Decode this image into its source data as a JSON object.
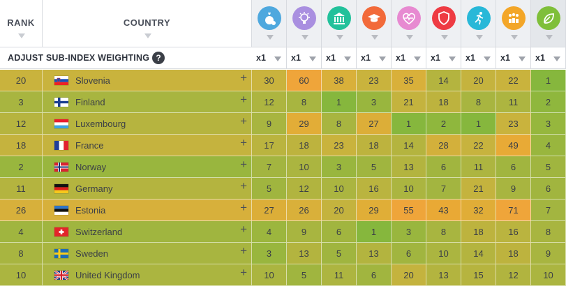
{
  "headers": {
    "rank": "RANK",
    "country": "COUNTRY",
    "categories": [
      {
        "icon": "money-bag-icon",
        "color": "#4ea8de"
      },
      {
        "icon": "lightbulb-icon",
        "color": "#a98fe0"
      },
      {
        "icon": "government-building-icon",
        "color": "#22c19b"
      },
      {
        "icon": "graduation-cap-icon",
        "color": "#f26a3a"
      },
      {
        "icon": "heartbeat-icon",
        "color": "#e78ad1"
      },
      {
        "icon": "shield-icon",
        "color": "#ee3b43"
      },
      {
        "icon": "running-person-icon",
        "color": "#28b8d8"
      },
      {
        "icon": "people-group-icon",
        "color": "#f3a628"
      },
      {
        "icon": "leaf-icon",
        "color": "#7fbf3a",
        "active": true
      }
    ]
  },
  "adjust": {
    "title": "ADJUST SUB-INDEX WEIGHTING",
    "help": "?",
    "weights": [
      "x1",
      "x1",
      "x1",
      "x1",
      "x1",
      "x1",
      "x1",
      "x1",
      "x1"
    ]
  },
  "colors": {
    "green": "#86b73d",
    "olive": "#a8b540",
    "mustard": "#c9b33d",
    "amber": "#e5ad35",
    "orange": "#efa53a"
  },
  "rows": [
    {
      "rank": "20",
      "country": "Slovenia",
      "flag": "si",
      "bg": "#c9b33d",
      "values": [
        "30",
        "60",
        "38",
        "23",
        "35",
        "14",
        "20",
        "22",
        "1"
      ],
      "cellColors": [
        "#c9b33d",
        "#efa53a",
        "#d9b03a",
        "#c9b33d",
        "#d9b03a",
        "#b4b43f",
        "#c5b33e",
        "#c9b33d",
        "#86b73d"
      ]
    },
    {
      "rank": "3",
      "country": "Finland",
      "flag": "fi",
      "bg": "#a8b540",
      "values": [
        "12",
        "8",
        "1",
        "3",
        "21",
        "18",
        "8",
        "11",
        "2"
      ],
      "cellColors": [
        "#adb540",
        "#a8b540",
        "#86b73d",
        "#99b63e",
        "#c4b33e",
        "#bdb33e",
        "#a8b540",
        "#adb540",
        "#8fb73d"
      ]
    },
    {
      "rank": "12",
      "country": "Luxembourg",
      "flag": "lu",
      "bg": "#b6b43f",
      "values": [
        "9",
        "29",
        "8",
        "27",
        "1",
        "2",
        "1",
        "23",
        "3"
      ],
      "cellColors": [
        "#a8b540",
        "#e2ad37",
        "#a8b540",
        "#dcae38",
        "#86b73d",
        "#8fb73d",
        "#86b73d",
        "#c9b33d",
        "#96b73d"
      ]
    },
    {
      "rank": "18",
      "country": "France",
      "flag": "fr",
      "bg": "#c5b33e",
      "values": [
        "17",
        "18",
        "23",
        "18",
        "14",
        "28",
        "22",
        "49",
        "4"
      ],
      "cellColors": [
        "#bab43f",
        "#bdb33e",
        "#c9b33d",
        "#bdb33e",
        "#b4b43f",
        "#d3b03b",
        "#c7b33e",
        "#e8aa36",
        "#99b63e"
      ]
    },
    {
      "rank": "2",
      "country": "Norway",
      "flag": "no",
      "bg": "#99b63e",
      "values": [
        "7",
        "10",
        "3",
        "5",
        "13",
        "6",
        "11",
        "6",
        "5"
      ],
      "cellColors": [
        "#a3b540",
        "#abb540",
        "#99b63e",
        "#a0b53f",
        "#b3b43f",
        "#a1b53f",
        "#adb540",
        "#a1b53f",
        "#a0b53f"
      ]
    },
    {
      "rank": "11",
      "country": "Germany",
      "flag": "de",
      "bg": "#b4b43f",
      "values": [
        "5",
        "12",
        "10",
        "16",
        "10",
        "7",
        "21",
        "9",
        "6"
      ],
      "cellColors": [
        "#a0b53f",
        "#b1b43f",
        "#abb540",
        "#bab43f",
        "#abb540",
        "#a3b540",
        "#c4b33e",
        "#a8b540",
        "#a1b53f"
      ]
    },
    {
      "rank": "26",
      "country": "Estonia",
      "flag": "ee",
      "bg": "#d7b03b",
      "values": [
        "27",
        "26",
        "20",
        "29",
        "55",
        "43",
        "32",
        "71",
        "7"
      ],
      "cellColors": [
        "#dcae38",
        "#d9b03a",
        "#c4b33e",
        "#e0ae37",
        "#efa53a",
        "#e9a935",
        "#e0ad37",
        "#efa53a",
        "#a3b540"
      ]
    },
    {
      "rank": "4",
      "country": "Switzerland",
      "flag": "ch",
      "bg": "#a0b53f",
      "values": [
        "4",
        "9",
        "6",
        "1",
        "3",
        "8",
        "18",
        "16",
        "8"
      ],
      "cellColors": [
        "#9cb63e",
        "#a8b540",
        "#a1b53f",
        "#86b73d",
        "#99b63e",
        "#a8b540",
        "#bdb33e",
        "#bab43f",
        "#a8b540"
      ]
    },
    {
      "rank": "8",
      "country": "Sweden",
      "flag": "se",
      "bg": "#a8b540",
      "values": [
        "3",
        "13",
        "5",
        "13",
        "6",
        "10",
        "14",
        "18",
        "9"
      ],
      "cellColors": [
        "#99b63e",
        "#b3b43f",
        "#a0b53f",
        "#b3b43f",
        "#a1b53f",
        "#abb540",
        "#b4b43f",
        "#bdb33e",
        "#a8b540"
      ]
    },
    {
      "rank": "10",
      "country": "United Kingdom",
      "flag": "gb",
      "bg": "#abb540",
      "values": [
        "10",
        "5",
        "11",
        "6",
        "20",
        "13",
        "15",
        "12",
        "10"
      ],
      "cellColors": [
        "#abb540",
        "#a0b53f",
        "#adb540",
        "#a1b53f",
        "#c4b33e",
        "#b3b43f",
        "#b6b43f",
        "#b1b43f",
        "#abb540"
      ]
    }
  ]
}
